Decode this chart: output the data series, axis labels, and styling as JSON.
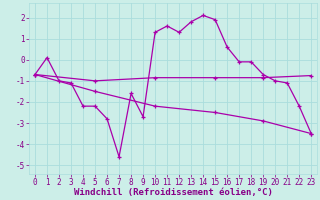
{
  "xlabel": "Windchill (Refroidissement éolien,°C)",
  "background_color": "#cceee8",
  "grid_color": "#aadddd",
  "line_color": "#aa00aa",
  "xlim": [
    -0.5,
    23.5
  ],
  "ylim": [
    -5.4,
    2.7
  ],
  "xticks": [
    0,
    1,
    2,
    3,
    4,
    5,
    6,
    7,
    8,
    9,
    10,
    11,
    12,
    13,
    14,
    15,
    16,
    17,
    18,
    19,
    20,
    21,
    22,
    23
  ],
  "yticks": [
    -5,
    -4,
    -3,
    -2,
    -1,
    0,
    1,
    2
  ],
  "series1_x": [
    0,
    1,
    2,
    3,
    4,
    5,
    6,
    7,
    8,
    9,
    10,
    11,
    12,
    13,
    14,
    15,
    16,
    17,
    18,
    19,
    20,
    21,
    22,
    23
  ],
  "series1_y": [
    -0.7,
    0.1,
    -1.0,
    -1.1,
    -2.2,
    -2.2,
    -2.8,
    -4.6,
    -1.6,
    -2.7,
    1.3,
    1.6,
    1.3,
    1.8,
    2.1,
    1.9,
    0.6,
    -0.1,
    -0.1,
    -0.7,
    -1.0,
    -1.1,
    -2.2,
    -3.5
  ],
  "series2_x": [
    0,
    5,
    10,
    15,
    19,
    23
  ],
  "series2_y": [
    -0.7,
    -1.0,
    -0.85,
    -0.85,
    -0.85,
    -0.75
  ],
  "series3_x": [
    0,
    5,
    10,
    15,
    19,
    23
  ],
  "series3_y": [
    -0.7,
    -1.5,
    -2.2,
    -2.5,
    -2.9,
    -3.5
  ],
  "fontsize_tick": 5.5,
  "fontsize_label": 6.5,
  "tick_color": "#880088",
  "label_color": "#880088"
}
